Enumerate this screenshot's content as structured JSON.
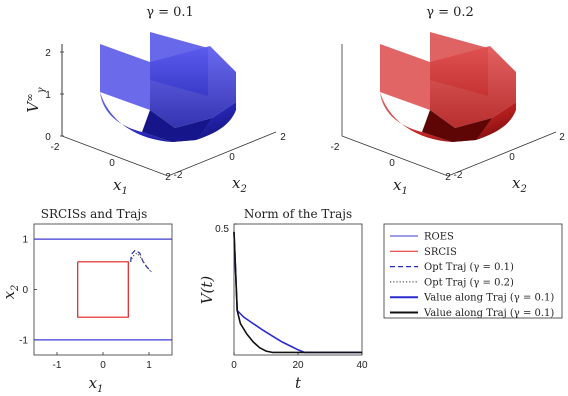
{
  "chart_data": [
    {
      "type": "surface3d",
      "title": "γ = 0.1",
      "xlabel": "x1",
      "ylabel": "x2",
      "zlabel": "V∞γ",
      "x_ticks": [
        "-2",
        "0",
        "2"
      ],
      "y_ticks": [
        "-2",
        "0",
        "2"
      ],
      "z_ticks": [
        "0",
        "1",
        "2"
      ],
      "xlim": [
        -2,
        2
      ],
      "ylim": [
        -2,
        2
      ],
      "zlim": [
        0,
        2
      ],
      "color": "#3a3ad8"
    },
    {
      "type": "surface3d",
      "title": "γ = 0.2",
      "xlabel": "x1",
      "ylabel": "x2",
      "x_ticks": [
        "-2",
        "0",
        "2"
      ],
      "y_ticks": [
        "-2",
        "0",
        "2"
      ],
      "xlim": [
        -2,
        2
      ],
      "ylim": [
        -2,
        2
      ],
      "zlim": [
        0,
        2
      ],
      "color": "#d02a2a"
    },
    {
      "type": "line",
      "title": "SRCISs and Trajs",
      "xlabel": "x1",
      "ylabel": "x2",
      "xlim": [
        -1.5,
        1.5
      ],
      "ylim": [
        -1.3,
        1.3
      ],
      "x_ticks": [
        -1,
        0,
        1
      ],
      "y_ticks": [
        -1,
        0,
        1
      ],
      "series": [
        {
          "name": "ROES",
          "color": "#3b3bd6",
          "style": "solid",
          "segments": [
            [
              [
                -1.5,
                1.0
              ],
              [
                1.5,
                1.0
              ]
            ],
            [
              [
                -1.5,
                -1.0
              ],
              [
                1.5,
                -1.0
              ]
            ]
          ]
        },
        {
          "name": "SRCIS",
          "color": "#e02020",
          "style": "solid",
          "segments": [
            [
              [
                -0.55,
                0.55
              ],
              [
                0.55,
                0.55
              ],
              [
                0.55,
                -0.55
              ],
              [
                -0.55,
                -0.55
              ],
              [
                -0.55,
                0.55
              ]
            ]
          ]
        },
        {
          "name": "Opt Traj (γ = 0.1)",
          "color": "#2a2ab8",
          "style": "dashed",
          "segments": [
            [
              [
                0.6,
                0.55
              ],
              [
                0.62,
                0.7
              ],
              [
                0.7,
                0.78
              ],
              [
                0.8,
                0.72
              ],
              [
                0.85,
                0.6
              ],
              [
                0.9,
                0.5
              ],
              [
                0.98,
                0.42
              ],
              [
                1.05,
                0.35
              ]
            ]
          ]
        },
        {
          "name": "Opt Traj (γ = 0.2)",
          "color": "#555555",
          "style": "dotted",
          "segments": [
            [
              [
                0.6,
                0.55
              ],
              [
                0.65,
                0.66
              ],
              [
                0.74,
                0.72
              ],
              [
                0.82,
                0.64
              ],
              [
                0.9,
                0.52
              ],
              [
                1.0,
                0.4
              ],
              [
                1.05,
                0.35
              ]
            ]
          ]
        }
      ]
    },
    {
      "type": "line",
      "title": "Norm of the Trajs",
      "xlabel": "t",
      "ylabel": "V(t)",
      "xlim": [
        0,
        40
      ],
      "ylim": [
        0,
        0.5
      ],
      "x_ticks": [
        0,
        20,
        40
      ],
      "y_tick_labels": [
        {
          "value": 0.5,
          "label": "0.5"
        }
      ],
      "series": [
        {
          "name": "Value along Traj (γ = 0.1)",
          "color": "#2a2ad0",
          "points": [
            [
              0,
              0.47
            ],
            [
              1,
              0.17
            ],
            [
              3,
              0.145
            ],
            [
              6,
              0.12
            ],
            [
              9,
              0.095
            ],
            [
              12,
              0.072
            ],
            [
              15,
              0.05
            ],
            [
              18,
              0.032
            ],
            [
              20,
              0.02
            ],
            [
              22,
              0.01
            ],
            [
              40,
              0.01
            ]
          ]
        },
        {
          "name": "Value along Traj (γ = 0.1)",
          "color": "#111111",
          "points": [
            [
              0,
              0.47
            ],
            [
              1,
              0.17
            ],
            [
              2,
              0.12
            ],
            [
              4,
              0.08
            ],
            [
              6,
              0.05
            ],
            [
              8,
              0.028
            ],
            [
              10,
              0.015
            ],
            [
              12,
              0.01
            ],
            [
              40,
              0.01
            ]
          ]
        }
      ]
    }
  ],
  "legend": [
    {
      "label": "ROES",
      "color": "#3b3bd6",
      "style": "solid",
      "width": 1
    },
    {
      "label": "SRCIS",
      "color": "#e02020",
      "style": "solid",
      "width": 1
    },
    {
      "label": "Opt Traj (γ = 0.1)",
      "color": "#2a2ab8",
      "style": "dashed",
      "width": 1.2
    },
    {
      "label": "Opt Traj (γ = 0.2)",
      "color": "#555555",
      "style": "dotted",
      "width": 1.2
    },
    {
      "label": "Value along Traj (γ = 0.1)",
      "color": "#2a2ad0",
      "style": "solid",
      "width": 2
    },
    {
      "label": "Value along Traj (γ = 0.1)",
      "color": "#111111",
      "style": "solid",
      "width": 2
    }
  ]
}
